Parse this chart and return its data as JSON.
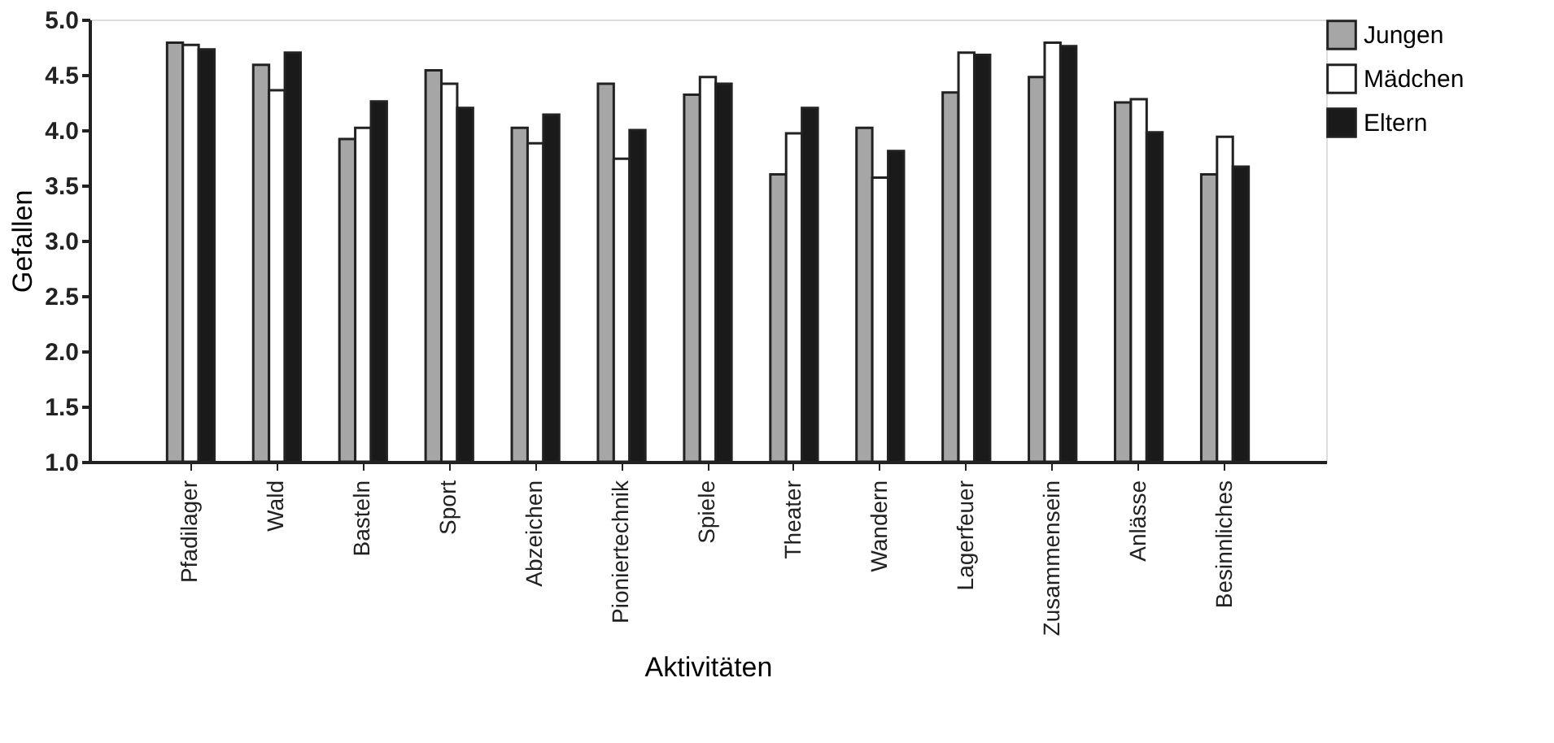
{
  "chart_data": {
    "type": "bar",
    "xlabel": "Aktivitäten",
    "ylabel": "Gefallen",
    "categories": [
      "Pfadilager",
      "Wald",
      "Basteln",
      "Sport",
      "Abzeichen",
      "Pioniertechnik",
      "Spiele",
      "Theater",
      "Wandern",
      "Lagerfeuer",
      "Zusammensein",
      "Anlässe",
      "Besinnliches"
    ],
    "series": [
      {
        "name": "Jungen",
        "color": "#a6a6a6",
        "values": [
          4.79,
          4.59,
          3.92,
          4.54,
          4.02,
          4.42,
          4.32,
          3.6,
          4.02,
          4.34,
          4.48,
          4.25,
          3.6
        ]
      },
      {
        "name": "Mädchen",
        "color": "#ffffff",
        "values": [
          4.77,
          4.36,
          4.02,
          4.42,
          3.88,
          3.74,
          4.48,
          3.97,
          3.57,
          4.7,
          4.79,
          4.28,
          3.94
        ]
      },
      {
        "name": "Eltern",
        "color": "#1a1a1a",
        "values": [
          4.73,
          4.7,
          4.26,
          4.2,
          4.14,
          4.0,
          4.42,
          4.2,
          3.81,
          4.68,
          4.76,
          3.98,
          3.67
        ]
      }
    ],
    "ylim": [
      1.0,
      5.0
    ],
    "yticks": [
      {
        "value": 1.0,
        "label": "1.0"
      },
      {
        "value": 1.5,
        "label": "1.5"
      },
      {
        "value": 2.0,
        "label": "2.0"
      },
      {
        "value": 2.5,
        "label": "2.5"
      },
      {
        "value": 3.0,
        "label": "3.0"
      },
      {
        "value": 3.5,
        "label": "3.5"
      },
      {
        "value": 4.0,
        "label": "4.0"
      },
      {
        "value": 4.5,
        "label": "4.5"
      },
      {
        "value": 5.0,
        "label": "5.0"
      }
    ],
    "grid": false,
    "legend": "top right"
  }
}
